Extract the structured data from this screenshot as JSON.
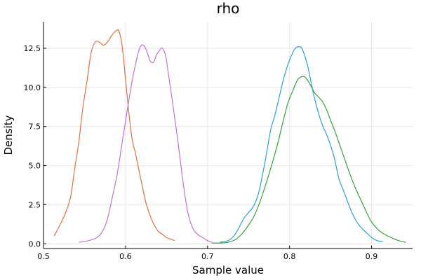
{
  "chart_data": {
    "type": "line",
    "title": "rho",
    "xlabel": "Sample value",
    "ylabel": "Density",
    "xlim": [
      0.5,
      0.95
    ],
    "ylim": [
      -0.3,
      14.2
    ],
    "xticks": [
      0.5,
      0.6,
      0.7,
      0.8,
      0.9
    ],
    "xtick_labels": [
      "0.5",
      "0.6",
      "0.7",
      "0.8",
      "0.9"
    ],
    "yticks": [
      0.0,
      2.5,
      5.0,
      7.5,
      10.0,
      12.5
    ],
    "ytick_labels": [
      "0.0",
      "2.5",
      "5.0",
      "7.5",
      "10.0",
      "12.5"
    ],
    "grid": true,
    "series": [
      {
        "color": "#e26f46",
        "x": [
          0.513,
          0.52,
          0.527,
          0.533,
          0.538,
          0.543,
          0.548,
          0.553,
          0.558,
          0.563,
          0.568,
          0.573,
          0.578,
          0.583,
          0.588,
          0.592,
          0.596,
          0.6,
          0.604,
          0.608,
          0.612,
          0.616,
          0.62,
          0.625,
          0.63,
          0.635,
          0.64,
          0.645,
          0.65,
          0.655,
          0.66
        ],
        "y": [
          0.5,
          1.2,
          2.0,
          3.0,
          4.8,
          6.5,
          8.7,
          10.4,
          12.2,
          12.9,
          12.9,
          12.7,
          12.9,
          13.3,
          13.6,
          13.6,
          12.6,
          10.5,
          8.4,
          6.7,
          5.8,
          4.8,
          3.8,
          2.6,
          1.8,
          1.2,
          0.8,
          0.6,
          0.4,
          0.3,
          0.2
        ]
      },
      {
        "color": "#c271d2",
        "x": [
          0.543,
          0.555,
          0.565,
          0.572,
          0.578,
          0.584,
          0.59,
          0.596,
          0.602,
          0.608,
          0.614,
          0.618,
          0.622,
          0.626,
          0.63,
          0.634,
          0.638,
          0.642,
          0.645,
          0.649,
          0.653,
          0.658,
          0.664,
          0.67,
          0.676,
          0.682,
          0.688,
          0.694,
          0.7,
          0.705
        ],
        "y": [
          0.1,
          0.2,
          0.4,
          0.8,
          1.6,
          3.0,
          4.5,
          6.5,
          8.5,
          10.4,
          11.9,
          12.6,
          12.7,
          12.3,
          11.7,
          11.6,
          12.1,
          12.4,
          12.5,
          12.0,
          10.6,
          8.8,
          6.5,
          4.0,
          2.0,
          1.0,
          0.6,
          0.4,
          0.2,
          0.1
        ]
      },
      {
        "color": "#3a9f3a",
        "x": [
          0.705,
          0.715,
          0.725,
          0.735,
          0.743,
          0.75,
          0.757,
          0.764,
          0.771,
          0.778,
          0.785,
          0.792,
          0.798,
          0.804,
          0.81,
          0.816,
          0.82,
          0.825,
          0.83,
          0.835,
          0.84,
          0.845,
          0.85,
          0.856,
          0.862,
          0.868,
          0.874,
          0.88,
          0.887,
          0.894,
          0.9,
          0.908,
          0.916,
          0.924,
          0.933,
          0.942
        ],
        "y": [
          0.05,
          0.05,
          0.1,
          0.3,
          0.7,
          1.2,
          1.8,
          2.7,
          3.8,
          5.0,
          6.3,
          7.8,
          9.0,
          9.8,
          10.5,
          10.7,
          10.6,
          10.2,
          9.7,
          9.4,
          9.1,
          8.6,
          7.9,
          7.1,
          6.2,
          5.3,
          4.4,
          3.6,
          2.8,
          2.0,
          1.4,
          0.9,
          0.6,
          0.4,
          0.2,
          0.1
        ]
      },
      {
        "color": "#2d9fd9",
        "x": [
          0.715,
          0.725,
          0.732,
          0.738,
          0.744,
          0.75,
          0.756,
          0.762,
          0.767,
          0.772,
          0.777,
          0.782,
          0.787,
          0.792,
          0.797,
          0.802,
          0.807,
          0.812,
          0.815,
          0.818,
          0.822,
          0.826,
          0.83,
          0.835,
          0.84,
          0.845,
          0.85,
          0.855,
          0.86,
          0.865,
          0.87,
          0.876,
          0.882,
          0.888,
          0.894,
          0.9,
          0.907,
          0.914
        ],
        "y": [
          0.1,
          0.2,
          0.5,
          1.0,
          1.6,
          2.0,
          2.4,
          3.2,
          4.4,
          5.8,
          7.3,
          8.2,
          9.3,
          10.4,
          11.3,
          12.0,
          12.5,
          12.6,
          12.5,
          12.1,
          11.4,
          10.4,
          9.4,
          8.4,
          7.6,
          7.0,
          6.3,
          5.4,
          4.2,
          3.5,
          2.8,
          2.0,
          1.4,
          1.0,
          0.7,
          0.4,
          0.2,
          0.15
        ]
      }
    ]
  }
}
